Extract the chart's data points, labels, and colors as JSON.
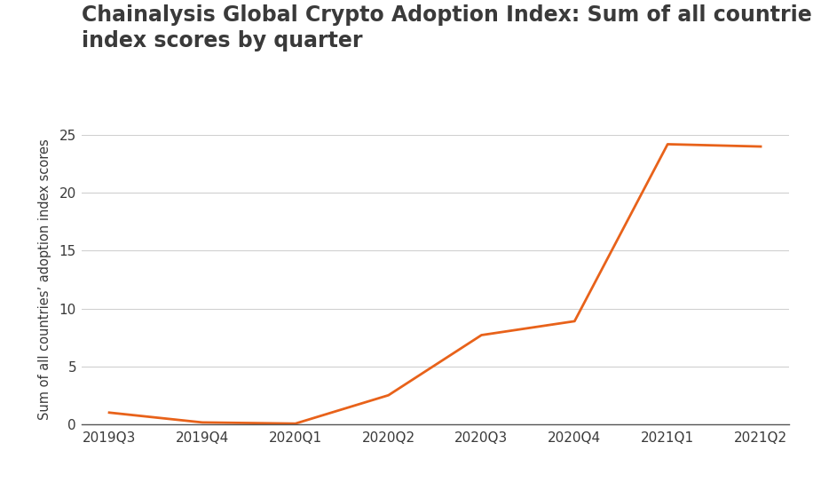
{
  "title_line1": "Chainalysis Global Crypto Adoption Index: Sum of all countries’",
  "title_line2": "index scores by quarter",
  "ylabel": "Sum of all countries’ adoption index scores",
  "x_labels": [
    "2019Q3",
    "2019Q4",
    "2020Q1",
    "2020Q2",
    "2020Q3",
    "2020Q4",
    "2021Q1",
    "2021Q2"
  ],
  "y_values": [
    1.0,
    0.15,
    0.05,
    2.5,
    7.7,
    8.9,
    24.2,
    24.0
  ],
  "line_color": "#E8621A",
  "line_width": 2.0,
  "ylim": [
    0,
    25
  ],
  "yticks": [
    0,
    5,
    10,
    15,
    20,
    25
  ],
  "background_color": "#ffffff",
  "grid_color": "#d0d0d0",
  "title_color": "#3a3a3a",
  "axis_label_color": "#3a3a3a",
  "tick_label_color": "#3a3a3a",
  "bottom_spine_color": "#555555",
  "title_fontsize": 17,
  "ylabel_fontsize": 10.5,
  "tick_fontsize": 11
}
